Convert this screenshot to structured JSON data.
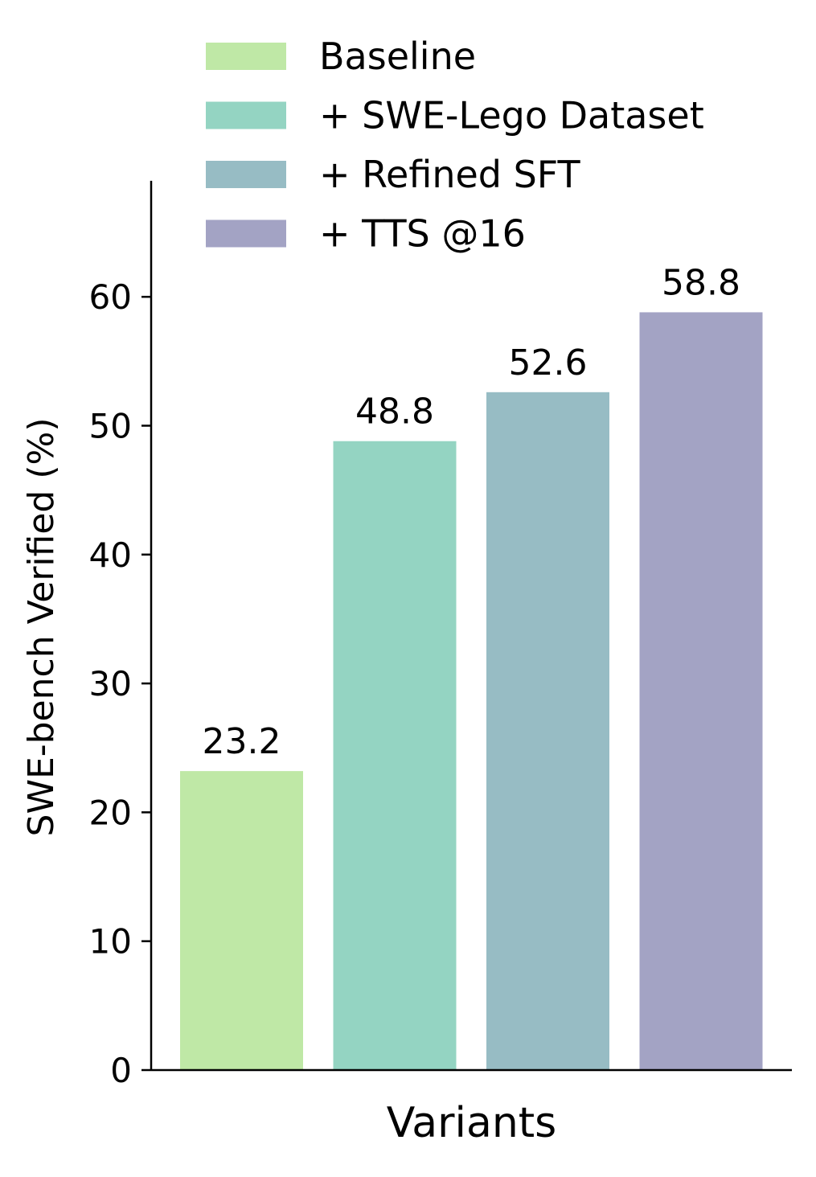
{
  "chart_data": {
    "type": "bar",
    "title": "",
    "xlabel": "Variants",
    "ylabel": "SWE-bench Verified (%)",
    "ylim": [
      0,
      69
    ],
    "yticks": [
      0,
      10,
      20,
      30,
      40,
      50,
      60
    ],
    "categories": [
      "Baseline",
      "+ SWE-Lego Dataset",
      "+ Refined SFT",
      "+ TTS @16"
    ],
    "values": [
      23.2,
      48.8,
      52.6,
      58.8
    ],
    "value_labels": [
      "23.2",
      "48.8",
      "52.6",
      "58.8"
    ],
    "colors": [
      "#bfe8a6",
      "#94d4c2",
      "#97bcc4",
      "#a3a3c4"
    ],
    "legend": {
      "position": "top",
      "entries": [
        "Baseline",
        "+ SWE-Lego Dataset",
        "+ Refined SFT",
        "+ TTS @16"
      ]
    },
    "grid": false
  }
}
